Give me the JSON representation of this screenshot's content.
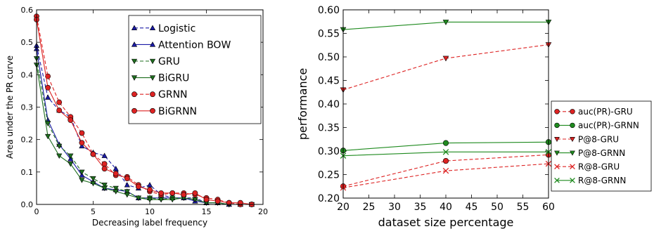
{
  "chart_data": [
    {
      "type": "line",
      "xlabel": "Decreasing label frequency",
      "ylabel": "Area under the PR curve",
      "xlim": [
        0,
        20
      ],
      "ylim": [
        0,
        0.6
      ],
      "xticks": [
        0,
        5,
        10,
        15,
        20
      ],
      "xtick_labels": [
        "0",
        "5",
        "10",
        "15",
        "20"
      ],
      "yticks": [
        0.0,
        0.1,
        0.2,
        0.3,
        0.4,
        0.5,
        0.6
      ],
      "ytick_labels": [
        "0.0",
        "0.1",
        "0.2",
        "0.3",
        "0.4",
        "0.5",
        "0.6"
      ],
      "grid": false,
      "legend_position": "top-right",
      "x": [
        0,
        1,
        2,
        3,
        4,
        5,
        6,
        7,
        8,
        9,
        10,
        11,
        12,
        13,
        14,
        15,
        16,
        17,
        18,
        19
      ],
      "series": [
        {
          "name": "Logistic",
          "color": "#1a1aa6",
          "dashed": true,
          "marker": "triangle-up",
          "values": [
            0.49,
            0.33,
            0.29,
            0.27,
            0.18,
            0.16,
            0.15,
            0.11,
            0.06,
            0.05,
            0.06,
            0.03,
            0.02,
            0.02,
            0.02,
            0.005,
            0.005,
            0.0,
            0.0,
            0.0
          ]
        },
        {
          "name": "Attention BOW",
          "color": "#1a1aa6",
          "dashed": false,
          "marker": "triangle-up",
          "values": [
            0.48,
            0.26,
            0.185,
            0.14,
            0.09,
            0.07,
            0.05,
            0.045,
            0.04,
            0.02,
            0.02,
            0.02,
            0.02,
            0.02,
            0.01,
            0.005,
            0.005,
            0.0,
            0.0,
            0.0
          ]
        },
        {
          "name": "GRU",
          "color": "#1e6e1e",
          "dashed": true,
          "marker": "triangle-down",
          "values": [
            0.45,
            0.25,
            0.18,
            0.15,
            0.1,
            0.08,
            0.06,
            0.05,
            0.04,
            0.02,
            0.02,
            0.015,
            0.02,
            0.02,
            0.015,
            0.005,
            0.005,
            0.0,
            0.0,
            0.0
          ]
        },
        {
          "name": "BiGRU",
          "color": "#1e6e1e",
          "dashed": false,
          "marker": "triangle-down",
          "values": [
            0.43,
            0.21,
            0.15,
            0.125,
            0.075,
            0.065,
            0.05,
            0.04,
            0.03,
            0.02,
            0.015,
            0.015,
            0.015,
            0.02,
            0.015,
            0.005,
            0.005,
            0.0,
            0.0,
            0.0
          ]
        },
        {
          "name": "GRNN",
          "color": "#dd2222",
          "dashed": true,
          "marker": "circle",
          "values": [
            0.58,
            0.395,
            0.315,
            0.27,
            0.22,
            0.155,
            0.125,
            0.09,
            0.085,
            0.06,
            0.04,
            0.03,
            0.035,
            0.035,
            0.03,
            0.02,
            0.015,
            0.005,
            0.0,
            0.0
          ]
        },
        {
          "name": "BiGRNN",
          "color": "#dd2222",
          "dashed": false,
          "marker": "circle",
          "values": [
            0.57,
            0.36,
            0.29,
            0.26,
            0.19,
            0.155,
            0.11,
            0.095,
            0.08,
            0.055,
            0.045,
            0.035,
            0.035,
            0.03,
            0.035,
            0.015,
            0.01,
            0.005,
            0.005,
            0.0
          ]
        }
      ]
    },
    {
      "type": "line",
      "xlabel": "dataset size percentage",
      "ylabel": "performance",
      "xlim": [
        20,
        60
      ],
      "ylim": [
        0.2,
        0.6
      ],
      "xticks": [
        20,
        25,
        30,
        35,
        40,
        45,
        50,
        55,
        60
      ],
      "xtick_labels": [
        "20",
        "25",
        "30",
        "35",
        "40",
        "45",
        "50",
        "55",
        "60"
      ],
      "yticks": [
        0.2,
        0.25,
        0.3,
        0.35,
        0.4,
        0.45,
        0.5,
        0.55,
        0.6
      ],
      "ytick_labels": [
        "0.20",
        "0.25",
        "0.30",
        "0.35",
        "0.40",
        "0.45",
        "0.50",
        "0.55",
        "0.60"
      ],
      "grid": false,
      "legend_position": "right, outside",
      "x": [
        20,
        40,
        60
      ],
      "series": [
        {
          "name": "auc(PR)-GRU",
          "color": "#dd2222",
          "dashed": true,
          "marker": "circle",
          "values": [
            0.225,
            0.279,
            0.292
          ]
        },
        {
          "name": "auc(PR)-GRNN",
          "color": "#1e8a1e",
          "dashed": false,
          "marker": "circle",
          "values": [
            0.301,
            0.317,
            0.319
          ]
        },
        {
          "name": "P@8-GRU",
          "color": "#dd2222",
          "dashed": true,
          "marker": "triangle-down",
          "values": [
            0.43,
            0.497,
            0.526
          ]
        },
        {
          "name": "P@8-GRNN",
          "color": "#1e8a1e",
          "dashed": false,
          "marker": "triangle-down",
          "values": [
            0.558,
            0.574,
            0.574
          ]
        },
        {
          "name": "R@8-GRU",
          "color": "#dd2222",
          "dashed": true,
          "marker": "x",
          "values": [
            0.222,
            0.258,
            0.273
          ]
        },
        {
          "name": "R@8-GRNN",
          "color": "#1e8a1e",
          "dashed": false,
          "marker": "x",
          "values": [
            0.29,
            0.298,
            0.298
          ]
        }
      ]
    }
  ]
}
